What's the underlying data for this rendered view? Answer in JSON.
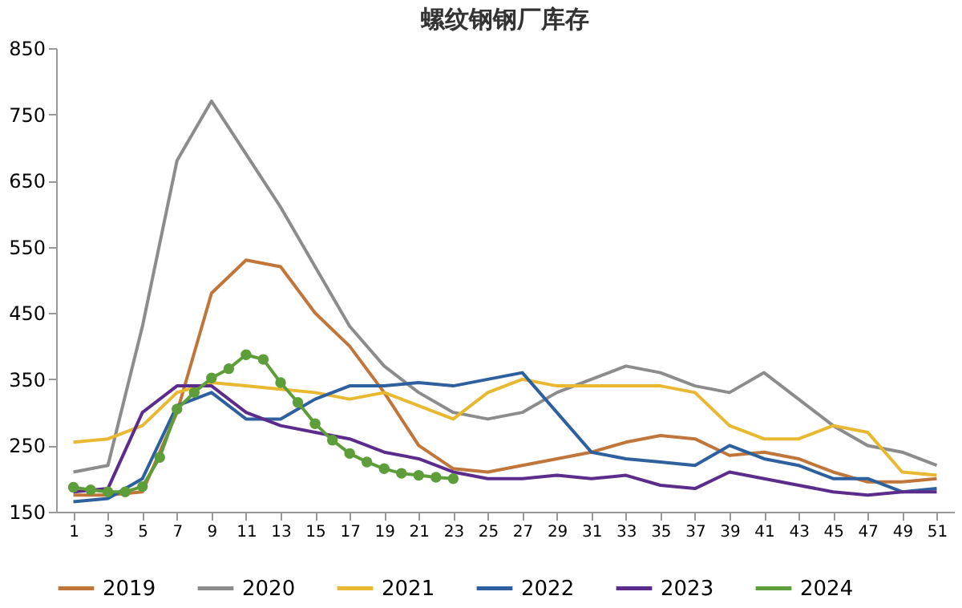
{
  "chart_data": {
    "type": "line",
    "title": "螺纹钢钢厂库存",
    "x": [
      1,
      3,
      5,
      7,
      9,
      11,
      13,
      15,
      17,
      19,
      21,
      23,
      25,
      27,
      29,
      31,
      33,
      35,
      37,
      39,
      41,
      43,
      45,
      47,
      49,
      51
    ],
    "series": [
      {
        "name": "2019",
        "color": "#c0763a",
        "marker": "none",
        "values": [
          175,
          175,
          180,
          300,
          480,
          530,
          520,
          450,
          400,
          330,
          250,
          215,
          210,
          220,
          230,
          240,
          255,
          265,
          260,
          235,
          240,
          230,
          210,
          195,
          195,
          200
        ]
      },
      {
        "name": "2020",
        "color": "#8c8c8c",
        "marker": "none",
        "values": [
          210,
          220,
          430,
          680,
          770,
          690,
          610,
          520,
          430,
          370,
          330,
          300,
          290,
          300,
          330,
          350,
          370,
          360,
          340,
          330,
          360,
          320,
          280,
          250,
          240,
          220
        ]
      },
      {
        "name": "2021",
        "color": "#e8b830",
        "marker": "none",
        "values": [
          255,
          260,
          280,
          330,
          345,
          340,
          335,
          330,
          320,
          330,
          310,
          290,
          330,
          350,
          340,
          340,
          340,
          340,
          330,
          280,
          260,
          260,
          280,
          270,
          210,
          205
        ]
      },
      {
        "name": "2022",
        "color": "#2e5f9e",
        "marker": "none",
        "values": [
          165,
          170,
          200,
          310,
          330,
          290,
          290,
          320,
          340,
          340,
          345,
          340,
          350,
          360,
          300,
          240,
          230,
          225,
          220,
          250,
          230,
          220,
          200,
          200,
          180,
          185
        ]
      },
      {
        "name": "2023",
        "color": "#5b2c8c",
        "marker": "none",
        "values": [
          180,
          185,
          300,
          340,
          340,
          300,
          280,
          270,
          260,
          240,
          230,
          210,
          200,
          200,
          205,
          200,
          205,
          190,
          185,
          210,
          200,
          190,
          180,
          175,
          180,
          180
        ]
      },
      {
        "name": "2024",
        "color": "#5e9e3a",
        "marker": "circle",
        "x": [
          1,
          2,
          3,
          4,
          5,
          6,
          7,
          8,
          9,
          10,
          11,
          12,
          13,
          14,
          15,
          16,
          17,
          18,
          19,
          20,
          21,
          22,
          23
        ],
        "values": [
          187,
          183,
          180,
          180,
          188,
          232,
          305,
          330,
          352,
          366,
          387,
          380,
          345,
          315,
          283,
          258,
          238,
          225,
          215,
          208,
          205,
          202,
          200
        ]
      }
    ],
    "xlim": [
      0,
      52
    ],
    "xticks": [
      1,
      3,
      5,
      7,
      9,
      11,
      13,
      15,
      17,
      19,
      21,
      23,
      25,
      27,
      29,
      31,
      33,
      35,
      37,
      39,
      41,
      43,
      45,
      47,
      49,
      51
    ],
    "ylim": [
      150,
      850
    ],
    "yticks": [
      150,
      250,
      350,
      450,
      550,
      650,
      750,
      850
    ],
    "grid": false,
    "legend": "bottom",
    "line_style": "solid"
  }
}
